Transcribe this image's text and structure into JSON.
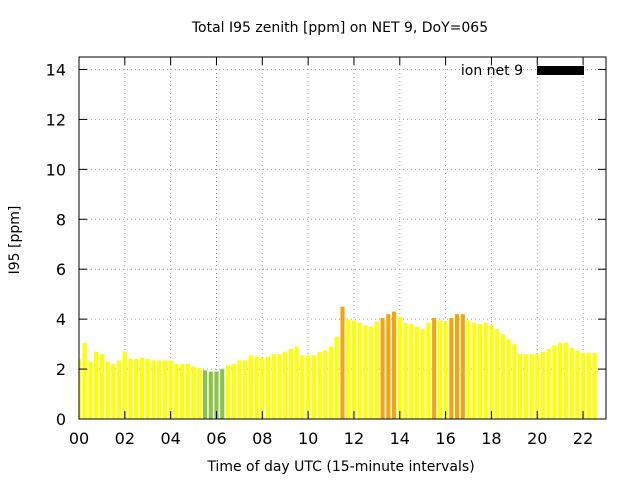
{
  "chart_data": {
    "type": "bar",
    "title": "Total I95 zenith [ppm] on NET 9, DoY=065",
    "xlabel": "Time of day UTC (15-minute intervals)",
    "ylabel": "I95 [ppm]",
    "x_tick_labels": [
      "00",
      "02",
      "04",
      "06",
      "08",
      "10",
      "12",
      "14",
      "16",
      "18",
      "20",
      "22"
    ],
    "y_tick_labels": [
      "0",
      "2",
      "4",
      "6",
      "8",
      "10",
      "12",
      "14"
    ],
    "xlim": [
      0,
      23
    ],
    "ylim": [
      0,
      14.5
    ],
    "grid": true,
    "legend": {
      "label": "ion net 9",
      "color": "#000000",
      "placement": "top-right"
    },
    "colors": {
      "green": "#88c540",
      "yellow": "#ffff00",
      "orange": "#f5a50a"
    },
    "series": [
      {
        "values": [
          2.4,
          3.05,
          2.3,
          2.7,
          2.6,
          2.3,
          2.2,
          2.35,
          2.7,
          2.4,
          2.4,
          2.45,
          2.4,
          2.35,
          2.35,
          2.35,
          2.35,
          2.2,
          2.2,
          2.2,
          2.1,
          2.05,
          1.95,
          1.9,
          1.9,
          2.0,
          2.15,
          2.2,
          2.35,
          2.35,
          2.55,
          2.5,
          2.45,
          2.5,
          2.6,
          2.6,
          2.7,
          2.8,
          2.9,
          2.55,
          2.55,
          2.55,
          2.7,
          2.75,
          2.9,
          3.3,
          4.5,
          4.0,
          3.95,
          3.85,
          3.75,
          3.7,
          3.9,
          4.05,
          4.2,
          4.3,
          4.1,
          3.85,
          3.8,
          3.7,
          3.6,
          3.85,
          4.05,
          3.95,
          3.9,
          4.05,
          4.2,
          4.2,
          3.95,
          3.85,
          3.8,
          3.85,
          3.75,
          3.6,
          3.4,
          3.2,
          3.0,
          2.6,
          2.6,
          2.6,
          2.6,
          2.7,
          2.8,
          2.95,
          3.05,
          3.05,
          2.85,
          2.75,
          2.65,
          2.65,
          2.65
        ],
        "levels": [
          "yellow",
          "yellow",
          "yellow",
          "yellow",
          "yellow",
          "yellow",
          "yellow",
          "yellow",
          "yellow",
          "yellow",
          "yellow",
          "yellow",
          "yellow",
          "yellow",
          "yellow",
          "yellow",
          "yellow",
          "yellow",
          "yellow",
          "yellow",
          "yellow",
          "yellow",
          "green",
          "green",
          "green",
          "green",
          "yellow",
          "yellow",
          "yellow",
          "yellow",
          "yellow",
          "yellow",
          "yellow",
          "yellow",
          "yellow",
          "yellow",
          "yellow",
          "yellow",
          "yellow",
          "yellow",
          "yellow",
          "yellow",
          "yellow",
          "yellow",
          "yellow",
          "yellow",
          "orange",
          "yellow",
          "yellow",
          "yellow",
          "yellow",
          "yellow",
          "yellow",
          "orange",
          "orange",
          "orange",
          "yellow",
          "yellow",
          "yellow",
          "yellow",
          "yellow",
          "yellow",
          "orange",
          "yellow",
          "yellow",
          "orange",
          "orange",
          "orange",
          "yellow",
          "yellow",
          "yellow",
          "yellow",
          "yellow",
          "yellow",
          "yellow",
          "yellow",
          "yellow",
          "yellow",
          "yellow",
          "yellow",
          "yellow",
          "yellow",
          "yellow",
          "yellow",
          "yellow",
          "yellow",
          "yellow",
          "yellow",
          "yellow",
          "yellow",
          "yellow"
        ]
      }
    ]
  }
}
